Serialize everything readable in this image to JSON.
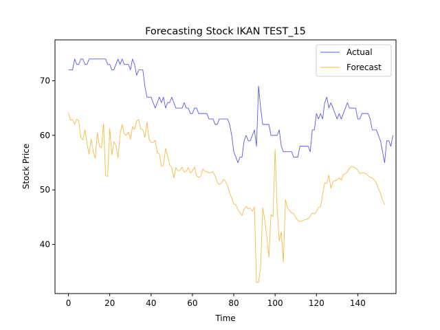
{
  "chart_data": {
    "type": "line",
    "title": "Forecasting Stock IKAN TEST_15",
    "xlabel": "Time",
    "ylabel": "Stock Price",
    "xlim": [
      -6.5,
      158.5
    ],
    "ylim": [
      31,
      77.5
    ],
    "xticks": [
      0,
      20,
      40,
      60,
      80,
      100,
      120,
      140
    ],
    "yticks": [
      40,
      50,
      60,
      70
    ],
    "grid": false,
    "legend": "top-right",
    "series": [
      {
        "name": "Actual",
        "color": "#5555ee",
        "values": [
          72,
          72,
          72,
          74,
          73,
          73,
          74,
          74,
          73,
          73,
          74,
          74,
          74,
          74,
          74,
          74,
          74,
          74,
          74,
          73,
          73,
          72,
          72,
          73,
          74,
          73,
          74,
          73,
          73,
          73,
          72,
          74,
          73,
          71,
          72,
          72,
          72,
          69,
          67,
          67,
          67,
          66,
          65,
          66,
          67,
          66,
          67,
          65,
          66,
          66,
          67,
          66,
          65,
          65,
          65,
          65,
          66,
          65,
          65,
          64,
          64,
          65,
          65,
          64,
          64,
          64,
          64,
          64,
          63,
          63,
          63,
          62,
          62,
          63,
          63,
          63,
          63,
          63,
          62,
          60,
          57,
          56,
          55,
          56,
          56,
          59,
          60,
          59,
          59,
          60,
          61,
          58,
          69,
          65,
          62,
          62,
          62,
          62,
          60,
          60,
          60,
          60,
          61,
          58,
          57,
          57,
          57,
          57,
          57,
          56,
          56,
          56,
          58,
          58,
          58,
          58,
          58,
          57,
          61,
          61,
          64,
          63,
          64,
          63,
          66,
          67,
          65,
          66,
          65,
          64,
          63,
          64,
          63,
          64,
          65,
          66,
          65,
          65,
          65,
          65,
          63,
          63,
          64,
          64,
          64,
          64,
          63,
          61,
          61,
          61,
          60,
          59,
          57,
          55,
          59,
          59,
          58,
          60
        ]
      },
      {
        "name": "Forecast",
        "color": "#f5b942",
        "values": [
          64.2,
          62.8,
          62.9,
          62.0,
          63.0,
          62.7,
          59.6,
          59.2,
          61.0,
          58.5,
          56.5,
          59.3,
          57.0,
          55.8,
          60.5,
          58.0,
          57.7,
          62.2,
          52.6,
          52.5,
          61.3,
          56.4,
          58.8,
          58.1,
          55.9,
          60.2,
          62.0,
          60.3,
          60.0,
          60.6,
          59.3,
          61.6,
          61.1,
          62.6,
          62.9,
          61.2,
          61.0,
          59.6,
          62.4,
          59.3,
          58.7,
          58.7,
          59.1,
          56.8,
          56.6,
          54.3,
          54.5,
          57.6,
          56.2,
          54.6,
          54.1,
          52.2,
          54.1,
          53.5,
          53.6,
          54.2,
          53.3,
          53.4,
          54.1,
          53.1,
          53.5,
          54.2,
          52.6,
          52.3,
          52.5,
          53.8,
          53.4,
          53.4,
          53.1,
          53.2,
          53.3,
          52.5,
          51.4,
          51.0,
          51.2,
          51.9,
          51.6,
          50.8,
          49.5,
          48.5,
          47.4,
          47.3,
          46.3,
          45.9,
          45.3,
          46.5,
          47.0,
          46.5,
          46.7,
          46.1,
          46.9,
          33.0,
          33.1,
          35.8,
          46.7,
          44.5,
          41.4,
          37.6,
          45.5,
          45.1,
          57.4,
          46.4,
          40.6,
          42.3,
          36.8,
          48.2,
          46.7,
          46.2,
          45.8,
          45.7,
          44.9,
          44.4,
          44.2,
          44.3,
          44.5,
          44.6,
          44.7,
          45.2,
          45.8,
          45.6,
          46.0,
          46.8,
          46.9,
          49.2,
          51.3,
          51.2,
          52.7,
          50.3,
          51.5,
          51.7,
          51.8,
          52.2,
          51.8,
          52.8,
          53.0,
          53.3,
          54.0,
          54.3,
          54.2,
          54.0,
          53.6,
          53.0,
          53.1,
          53.1,
          53.0,
          52.6,
          52.3,
          52.2,
          51.8,
          51.3,
          50.2,
          49.3,
          48.2,
          47.3
        ]
      }
    ]
  }
}
